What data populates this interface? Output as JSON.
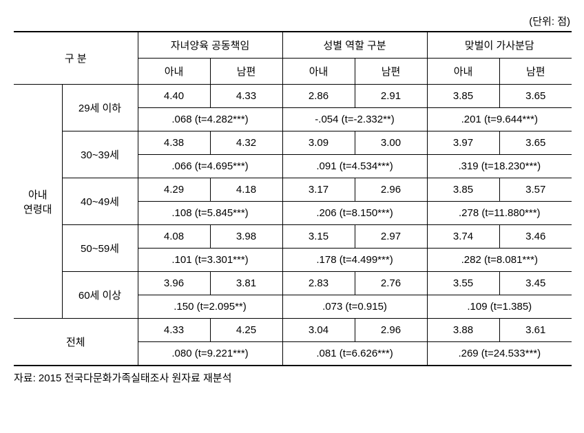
{
  "unit_label": "(단위: 점)",
  "header": {
    "category": "구 분",
    "groups": [
      {
        "title": "자녀양육 공동책임",
        "sub": [
          "아내",
          "남편"
        ]
      },
      {
        "title": "성별 역할 구분",
        "sub": [
          "아내",
          "남편"
        ]
      },
      {
        "title": "맞벌이 가사분담",
        "sub": [
          "아내",
          "남편"
        ]
      }
    ]
  },
  "row_group_label": "아내\n연령대",
  "rows": [
    {
      "age": "29세 이하",
      "values": [
        "4.40",
        "4.33",
        "2.86",
        "2.91",
        "3.85",
        "3.65"
      ],
      "stats": [
        ".068 (t=4.282***)",
        "-.054 (t=-2.332**)",
        ".201 (t=9.644***)"
      ]
    },
    {
      "age": "30~39세",
      "values": [
        "4.38",
        "4.32",
        "3.09",
        "3.00",
        "3.97",
        "3.65"
      ],
      "stats": [
        ".066 (t=4.695***)",
        ".091 (t=4.534***)",
        ".319 (t=18.230***)"
      ]
    },
    {
      "age": "40~49세",
      "values": [
        "4.29",
        "4.18",
        "3.17",
        "2.96",
        "3.85",
        "3.57"
      ],
      "stats": [
        ".108 (t=5.845***)",
        ".206 (t=8.150***)",
        ".278 (t=11.880***)"
      ]
    },
    {
      "age": "50~59세",
      "values": [
        "4.08",
        "3.98",
        "3.15",
        "2.97",
        "3.74",
        "3.46"
      ],
      "stats": [
        ".101 (t=3.301***)",
        ".178 (t=4.499***)",
        ".282 (t=8.081***)"
      ]
    },
    {
      "age": "60세 이상",
      "values": [
        "3.96",
        "3.81",
        "2.83",
        "2.76",
        "3.55",
        "3.45"
      ],
      "stats": [
        ".150 (t=2.095**)",
        ".073 (t=0.915)",
        ".109 (t=1.385)"
      ]
    }
  ],
  "total": {
    "label": "전체",
    "values": [
      "4.33",
      "4.25",
      "3.04",
      "2.96",
      "3.88",
      "3.61"
    ],
    "stats": [
      ".080 (t=9.221***)",
      ".081 (t=6.626***)",
      ".269 (t=24.533***)"
    ]
  },
  "source": "자료: 2015 전국다문화가족실태조사 원자료 재분석",
  "style": {
    "font_family": "Malgun Gothic",
    "font_size_pt": 11,
    "border_color": "#000000",
    "background_color": "#ffffff",
    "outer_border_width": 2,
    "inner_border_width": 1
  }
}
